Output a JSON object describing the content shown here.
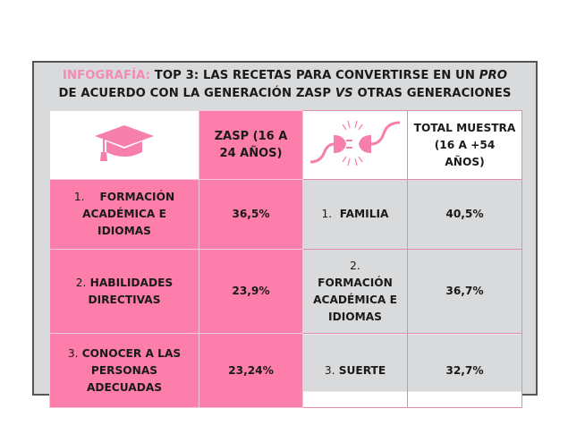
{
  "title": {
    "prefix": "INFOGRAFÍA:",
    "line1": "TOP 3: LAS RECETAS PARA CONVERTIRSE EN UN",
    "line1_italic": "PRO",
    "line2a": "DE ACUERDO CON LA GENERACIÓN ZASP",
    "line2_italic": "VS",
    "line2b": "OTRAS GENERACIONES"
  },
  "colors": {
    "accent": "#fd7eab",
    "panel": "#d9dadc",
    "title_prefix": "#f48ab0"
  },
  "header": {
    "icon_left": "graduation-cap-icon",
    "zasp": "ZASP (16 A 24 AÑOS)",
    "icon_right": "plug-disconnected-icon",
    "total": "TOTAL MUESTRA (16 A +54 AÑOS)"
  },
  "rows": [
    {
      "zasp_num": "1.",
      "zasp_item": "FORMACIÓN ACADÉMICA E IDIOMAS",
      "zasp_pct": "36,5%",
      "total_num": "1.",
      "total_item": "FAMILIA",
      "total_pct": "40,5%"
    },
    {
      "zasp_num": "2.",
      "zasp_item": "HABILIDADES DIRECTIVAS",
      "zasp_pct": "23,9%",
      "total_num": "2.",
      "total_item": "FORMACIÓN ACADÉMICA E IDIOMAS",
      "total_pct": "36,7%"
    },
    {
      "zasp_num": "3.",
      "zasp_item": "CONOCER A LAS PERSONAS ADECUADAS",
      "zasp_pct": "23,24%",
      "total_num": "3.",
      "total_item": "SUERTE",
      "total_pct": "32,7%"
    }
  ]
}
